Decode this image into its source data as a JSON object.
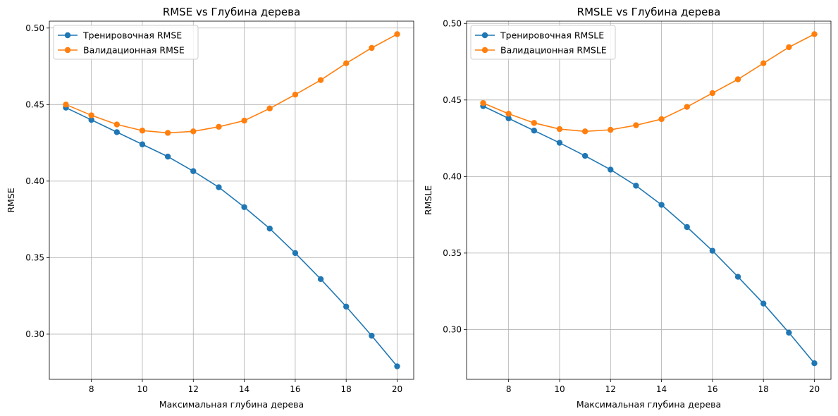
{
  "chart_data": [
    {
      "type": "line",
      "title": "RMSE vs Глубина дерева",
      "xlabel": "Максимальная глубина дерева",
      "ylabel": "RMSE",
      "x": [
        7,
        8,
        9,
        10,
        11,
        12,
        13,
        14,
        15,
        16,
        17,
        18,
        19,
        20
      ],
      "xticks": [
        8,
        10,
        12,
        14,
        16,
        18,
        20
      ],
      "xtick_labels": [
        "8",
        "10",
        "12",
        "14",
        "16",
        "18",
        "20"
      ],
      "yticks": [
        0.3,
        0.35,
        0.4,
        0.45,
        0.5
      ],
      "ytick_labels": [
        "0.30",
        "0.35",
        "0.40",
        "0.45",
        "0.50"
      ],
      "xlim": [
        6.35,
        20.65
      ],
      "ylim": [
        0.2705,
        0.5045
      ],
      "grid": true,
      "legend_position": "top-left",
      "series": [
        {
          "name": "Тренировочная RMSE",
          "color": "#1f77b4",
          "values": [
            0.448,
            0.44,
            0.432,
            0.424,
            0.416,
            0.4065,
            0.396,
            0.383,
            0.369,
            0.353,
            0.336,
            0.318,
            0.299,
            0.279
          ]
        },
        {
          "name": "Валидационная RMSE",
          "color": "#ff7f0e",
          "values": [
            0.45,
            0.443,
            0.437,
            0.433,
            0.4315,
            0.4325,
            0.4355,
            0.4395,
            0.4475,
            0.4565,
            0.466,
            0.477,
            0.487,
            0.496
          ]
        }
      ]
    },
    {
      "type": "line",
      "title": "RMSLE vs Глубина дерева",
      "xlabel": "Максимальная глубина дерева",
      "ylabel": "RMSLE",
      "x": [
        7,
        8,
        9,
        10,
        11,
        12,
        13,
        14,
        15,
        16,
        17,
        18,
        19,
        20
      ],
      "xticks": [
        8,
        10,
        12,
        14,
        16,
        18,
        20
      ],
      "xtick_labels": [
        "8",
        "10",
        "12",
        "14",
        "16",
        "18",
        "20"
      ],
      "yticks": [
        0.3,
        0.35,
        0.4,
        0.45,
        0.5
      ],
      "ytick_labels": [
        "0.30",
        "0.35",
        "0.40",
        "0.45",
        "0.50"
      ],
      "xlim": [
        6.35,
        20.65
      ],
      "ylim": [
        0.2675,
        0.5015
      ],
      "grid": true,
      "legend_position": "top-left",
      "series": [
        {
          "name": "Тренировочная RMSLE",
          "color": "#1f77b4",
          "values": [
            0.446,
            0.438,
            0.43,
            0.422,
            0.4135,
            0.4045,
            0.394,
            0.3815,
            0.367,
            0.3515,
            0.3345,
            0.317,
            0.298,
            0.278
          ]
        },
        {
          "name": "Валидационная RMSLE",
          "color": "#ff7f0e",
          "values": [
            0.448,
            0.441,
            0.435,
            0.431,
            0.4295,
            0.4305,
            0.4335,
            0.4375,
            0.4455,
            0.4545,
            0.4635,
            0.474,
            0.4845,
            0.493
          ]
        }
      ]
    }
  ]
}
